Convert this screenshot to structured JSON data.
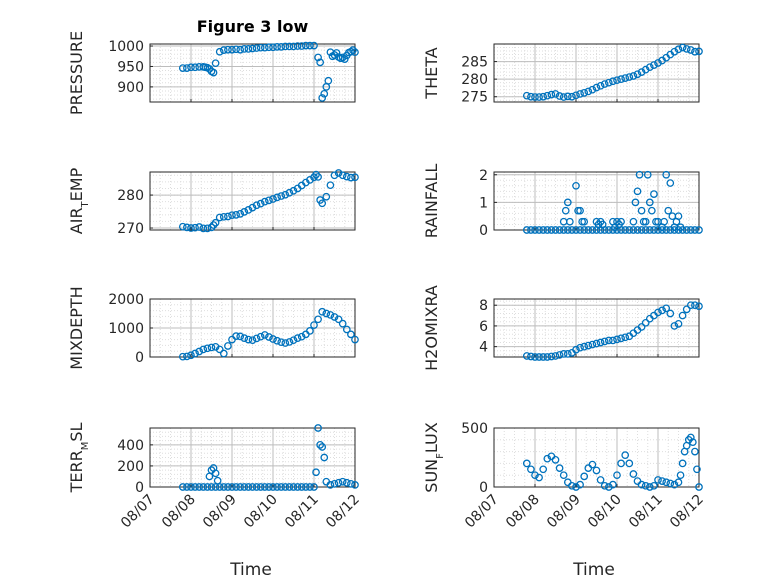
{
  "chart_data": [
    {
      "type": "scatter",
      "title": "Figure 3 low",
      "ylabel": "PRESSURE",
      "yticks": [
        900,
        950,
        1000
      ],
      "ylim": [
        863,
        1005
      ],
      "xticks": [
        "08/07",
        "08/08",
        "08/09",
        "08/10",
        "08/11",
        "08/12"
      ],
      "xlim": [
        0,
        5
      ],
      "grid": true,
      "marker_color": "#0072BD",
      "x": [
        0.8,
        0.9,
        1.0,
        1.1,
        1.2,
        1.3,
        1.35,
        1.4,
        1.45,
        1.5,
        1.55,
        1.6,
        1.7,
        1.8,
        1.9,
        2.0,
        2.1,
        2.2,
        2.3,
        2.4,
        2.5,
        2.6,
        2.7,
        2.8,
        2.9,
        3.0,
        3.1,
        3.2,
        3.3,
        3.4,
        3.5,
        3.6,
        3.7,
        3.8,
        3.9,
        4.0,
        4.1,
        4.15,
        4.2,
        4.25,
        4.3,
        4.35,
        4.4,
        4.45,
        4.5,
        4.55,
        4.6,
        4.65,
        4.7,
        4.75,
        4.8,
        4.85,
        4.9,
        4.95,
        5.0
      ],
      "y": [
        946,
        946,
        948,
        948,
        949,
        949,
        948,
        947,
        944,
        938,
        935,
        958,
        986,
        990,
        991,
        991,
        992,
        991,
        993,
        993,
        994,
        995,
        996,
        996,
        997,
        997,
        998,
        998,
        999,
        999,
        999,
        1000,
        1000,
        1001,
        1001,
        1001,
        972,
        960,
        873,
        883,
        900,
        915,
        985,
        975,
        978,
        983,
        973,
        970,
        972,
        968,
        977,
        984,
        986,
        990,
        985
      ]
    },
    {
      "type": "scatter",
      "title": "",
      "ylabel": "THETA",
      "yticks": [
        275,
        280,
        285
      ],
      "ylim": [
        273.5,
        290
      ],
      "xticks": [
        "08/07",
        "08/08",
        "08/09",
        "08/10",
        "08/11",
        "08/12"
      ],
      "xlim": [
        0,
        5
      ],
      "grid": true,
      "marker_color": "#0072BD",
      "x": [
        0.8,
        0.9,
        1.0,
        1.1,
        1.2,
        1.3,
        1.4,
        1.5,
        1.6,
        1.7,
        1.8,
        1.9,
        2.0,
        2.1,
        2.2,
        2.3,
        2.4,
        2.5,
        2.6,
        2.7,
        2.8,
        2.9,
        3.0,
        3.1,
        3.2,
        3.3,
        3.4,
        3.5,
        3.6,
        3.7,
        3.8,
        3.9,
        4.0,
        4.1,
        4.2,
        4.3,
        4.4,
        4.5,
        4.6,
        4.7,
        4.8,
        4.9,
        5.0
      ],
      "y": [
        275.3,
        275.0,
        274.9,
        274.9,
        275.0,
        275.3,
        275.6,
        275.8,
        275.2,
        274.9,
        275.1,
        275.0,
        275.4,
        275.8,
        276.1,
        276.5,
        277.0,
        277.6,
        278.1,
        278.6,
        279.0,
        279.4,
        279.7,
        280.0,
        280.3,
        280.6,
        280.9,
        281.4,
        282.0,
        282.7,
        283.4,
        284.0,
        284.6,
        285.3,
        286.1,
        287.0,
        287.8,
        288.5,
        289.0,
        288.6,
        288.3,
        287.8,
        287.9
      ]
    },
    {
      "type": "scatter",
      "title": "",
      "ylabel": "AIR_TEMP",
      "yticks": [
        270,
        280
      ],
      "ylim": [
        269.4,
        287
      ],
      "xticks": [
        "08/07",
        "08/08",
        "08/09",
        "08/10",
        "08/11",
        "08/12"
      ],
      "xlim": [
        0,
        5
      ],
      "grid": true,
      "marker_color": "#0072BD",
      "x": [
        0.8,
        0.9,
        1.0,
        1.1,
        1.2,
        1.3,
        1.4,
        1.5,
        1.55,
        1.6,
        1.7,
        1.8,
        1.9,
        2.0,
        2.1,
        2.2,
        2.3,
        2.4,
        2.5,
        2.6,
        2.7,
        2.8,
        2.9,
        3.0,
        3.1,
        3.2,
        3.3,
        3.4,
        3.5,
        3.6,
        3.7,
        3.8,
        3.9,
        4.0,
        4.05,
        4.1,
        4.15,
        4.2,
        4.3,
        4.4,
        4.5,
        4.6,
        4.7,
        4.8,
        4.9,
        5.0
      ],
      "y": [
        270.4,
        270.2,
        270.0,
        270.1,
        270.3,
        269.9,
        269.9,
        270.2,
        270.9,
        271.6,
        273.2,
        273.4,
        273.5,
        273.9,
        274.0,
        274.3,
        274.9,
        275.5,
        276.2,
        276.9,
        277.4,
        278.0,
        278.4,
        278.8,
        279.3,
        279.7,
        280.1,
        280.7,
        281.3,
        282.0,
        282.9,
        283.8,
        284.6,
        285.4,
        286.2,
        285.5,
        278.5,
        277.5,
        279.5,
        283.0,
        286.0,
        286.7,
        286.0,
        285.6,
        285.3,
        285.4
      ]
    },
    {
      "type": "scatter",
      "title": "",
      "ylabel": "RAINFALL",
      "yticks": [
        0,
        1,
        2
      ],
      "ylim": [
        0,
        2.1
      ],
      "xticks": [
        "08/07",
        "08/08",
        "08/09",
        "08/10",
        "08/11",
        "08/12"
      ],
      "xlim": [
        0,
        5
      ],
      "grid": true,
      "marker_color": "#0072BD",
      "x": [
        0.8,
        0.9,
        1.0,
        1.1,
        1.2,
        1.3,
        1.4,
        1.5,
        1.6,
        1.7,
        1.8,
        1.9,
        2.0,
        2.1,
        2.2,
        2.3,
        2.4,
        2.5,
        2.6,
        2.7,
        2.8,
        2.9,
        3.0,
        3.1,
        3.2,
        3.3,
        3.4,
        3.5,
        3.6,
        3.7,
        3.8,
        3.9,
        4.0,
        4.1,
        4.2,
        4.3,
        4.4,
        4.5,
        4.6,
        4.7,
        4.8,
        4.9,
        5.0,
        1.7,
        1.75,
        1.8,
        1.85,
        2.0,
        2.05,
        2.1,
        2.15,
        2.2,
        2.5,
        2.55,
        2.6,
        2.65,
        2.9,
        2.95,
        3.0,
        3.05,
        3.1,
        3.4,
        3.45,
        3.5,
        3.55,
        3.6,
        3.65,
        3.7,
        3.75,
        3.8,
        3.85,
        3.9,
        3.95,
        4.0,
        4.1,
        4.15,
        4.2,
        4.25,
        4.3,
        4.35,
        4.4,
        4.45,
        4.5,
        4.55
      ],
      "y": [
        0,
        0,
        0,
        0,
        0,
        0,
        0,
        0,
        0,
        0,
        0,
        0,
        0,
        0,
        0,
        0,
        0,
        0,
        0,
        0,
        0,
        0,
        0,
        0,
        0,
        0,
        0,
        0,
        0,
        0,
        0,
        0,
        0,
        0,
        0,
        0,
        0,
        0,
        0,
        0,
        0,
        0,
        0,
        0.3,
        0.7,
        1.0,
        0.3,
        1.6,
        0.7,
        0.7,
        0.3,
        0.3,
        0.3,
        0.2,
        0.3,
        0.2,
        0.3,
        0.1,
        0.3,
        0.2,
        0.3,
        0.3,
        1.0,
        1.4,
        2.0,
        0.7,
        0.3,
        0.3,
        2.0,
        1.0,
        0.7,
        1.3,
        0.3,
        0.3,
        0.1,
        0.3,
        2.0,
        0.7,
        1.7,
        0.5,
        0.1,
        0.3,
        0.5,
        0.1
      ]
    },
    {
      "type": "scatter",
      "title": "",
      "ylabel": "MIXDEPTH",
      "yticks": [
        0,
        1000,
        2000
      ],
      "ylim": [
        0,
        2000
      ],
      "xticks": [
        "08/07",
        "08/08",
        "08/09",
        "08/10",
        "08/11",
        "08/12"
      ],
      "xlim": [
        0,
        5
      ],
      "grid": true,
      "marker_color": "#0072BD",
      "x": [
        0.8,
        0.9,
        1.0,
        1.1,
        1.2,
        1.3,
        1.4,
        1.5,
        1.6,
        1.7,
        1.8,
        1.9,
        2.0,
        2.1,
        2.2,
        2.3,
        2.4,
        2.5,
        2.6,
        2.7,
        2.8,
        2.9,
        3.0,
        3.1,
        3.2,
        3.3,
        3.4,
        3.5,
        3.6,
        3.7,
        3.8,
        3.9,
        4.0,
        4.1,
        4.2,
        4.3,
        4.4,
        4.5,
        4.6,
        4.7,
        4.8,
        4.9,
        5.0
      ],
      "y": [
        10,
        20,
        60,
        120,
        190,
        260,
        300,
        330,
        350,
        260,
        120,
        380,
        600,
        720,
        710,
        650,
        600,
        580,
        640,
        700,
        760,
        690,
        620,
        560,
        510,
        480,
        520,
        580,
        650,
        700,
        780,
        900,
        1100,
        1300,
        1560,
        1500,
        1450,
        1380,
        1300,
        1150,
        950,
        780,
        600
      ]
    },
    {
      "type": "scatter",
      "title": "",
      "ylabel": "H2OMIXRA",
      "yticks": [
        4,
        6,
        8
      ],
      "ylim": [
        3,
        8.6
      ],
      "xticks": [
        "08/07",
        "08/08",
        "08/09",
        "08/10",
        "08/11",
        "08/12"
      ],
      "xlim": [
        0,
        5
      ],
      "grid": true,
      "marker_color": "#0072BD",
      "x": [
        0.8,
        0.9,
        1.0,
        1.1,
        1.2,
        1.3,
        1.4,
        1.5,
        1.6,
        1.7,
        1.8,
        1.9,
        2.0,
        2.1,
        2.2,
        2.3,
        2.4,
        2.5,
        2.6,
        2.7,
        2.8,
        2.9,
        3.0,
        3.1,
        3.2,
        3.3,
        3.4,
        3.5,
        3.6,
        3.7,
        3.8,
        3.9,
        4.0,
        4.1,
        4.2,
        4.3,
        4.4,
        4.5,
        4.6,
        4.7,
        4.8,
        4.9,
        5.0
      ],
      "y": [
        3.1,
        3.05,
        3.0,
        3.0,
        3.0,
        3.0,
        3.05,
        3.1,
        3.2,
        3.3,
        3.3,
        3.4,
        3.7,
        3.9,
        4.0,
        4.1,
        4.2,
        4.3,
        4.4,
        4.5,
        4.6,
        4.6,
        4.7,
        4.8,
        4.9,
        5.0,
        5.3,
        5.6,
        5.9,
        6.3,
        6.7,
        7.0,
        7.3,
        7.5,
        7.7,
        7.2,
        6.0,
        6.2,
        7.0,
        7.6,
        8.0,
        8.0,
        7.9
      ]
    },
    {
      "type": "scatter",
      "title": "",
      "ylabel": "TERR_MSL",
      "yticks": [
        0,
        200,
        400
      ],
      "ylim": [
        0,
        560
      ],
      "xticks": [
        "08/07",
        "08/08",
        "08/09",
        "08/10",
        "08/11",
        "08/12"
      ],
      "xlim": [
        0,
        5
      ],
      "grid": true,
      "marker_color": "#0072BD",
      "x": [
        0.8,
        0.9,
        1.0,
        1.1,
        1.2,
        1.3,
        1.4,
        1.5,
        1.6,
        1.7,
        1.8,
        1.9,
        2.0,
        2.1,
        2.2,
        2.3,
        2.4,
        2.5,
        2.6,
        2.7,
        2.8,
        2.9,
        3.0,
        3.1,
        3.2,
        3.3,
        3.4,
        3.5,
        3.6,
        3.7,
        3.8,
        3.9,
        4.0,
        4.05,
        4.1,
        4.15,
        4.2,
        4.25,
        4.3,
        4.4,
        4.5,
        4.6,
        4.7,
        4.8,
        4.9,
        5.0,
        1.45,
        1.5,
        1.55,
        1.6,
        1.65
      ],
      "y": [
        0,
        0,
        0,
        0,
        0,
        0,
        0,
        0,
        0,
        0,
        0,
        0,
        0,
        0,
        0,
        0,
        0,
        0,
        0,
        0,
        0,
        0,
        0,
        0,
        0,
        0,
        0,
        0,
        0,
        0,
        0,
        0,
        0,
        140,
        560,
        400,
        380,
        280,
        50,
        20,
        30,
        40,
        50,
        40,
        30,
        20,
        100,
        160,
        180,
        130,
        60
      ]
    },
    {
      "type": "scatter",
      "title": "",
      "ylabel": "SUN_FLUX",
      "yticks": [
        0,
        500
      ],
      "ylim": [
        0,
        500
      ],
      "xticks": [
        "08/07",
        "08/08",
        "08/09",
        "08/10",
        "08/11",
        "08/12"
      ],
      "xlim": [
        0,
        5
      ],
      "grid": true,
      "marker_color": "#0072BD",
      "x": [
        0.8,
        0.9,
        1.0,
        1.1,
        1.2,
        1.3,
        1.4,
        1.5,
        1.6,
        1.7,
        1.8,
        1.9,
        2.0,
        2.1,
        2.2,
        2.3,
        2.4,
        2.5,
        2.6,
        2.7,
        2.8,
        2.9,
        3.0,
        3.1,
        3.2,
        3.3,
        3.4,
        3.5,
        3.6,
        3.7,
        3.8,
        3.9,
        4.0,
        4.1,
        4.2,
        4.3,
        4.4,
        4.5,
        4.55,
        4.6,
        4.65,
        4.7,
        4.75,
        4.8,
        4.85,
        4.9,
        4.95,
        5.0
      ],
      "y": [
        200,
        150,
        100,
        80,
        150,
        240,
        260,
        230,
        160,
        100,
        40,
        10,
        0,
        20,
        90,
        160,
        190,
        140,
        60,
        10,
        0,
        20,
        100,
        200,
        270,
        200,
        110,
        50,
        20,
        10,
        0,
        10,
        60,
        50,
        40,
        30,
        20,
        40,
        100,
        200,
        300,
        350,
        400,
        420,
        380,
        300,
        150,
        0
      ]
    }
  ],
  "xlabel": "Time"
}
